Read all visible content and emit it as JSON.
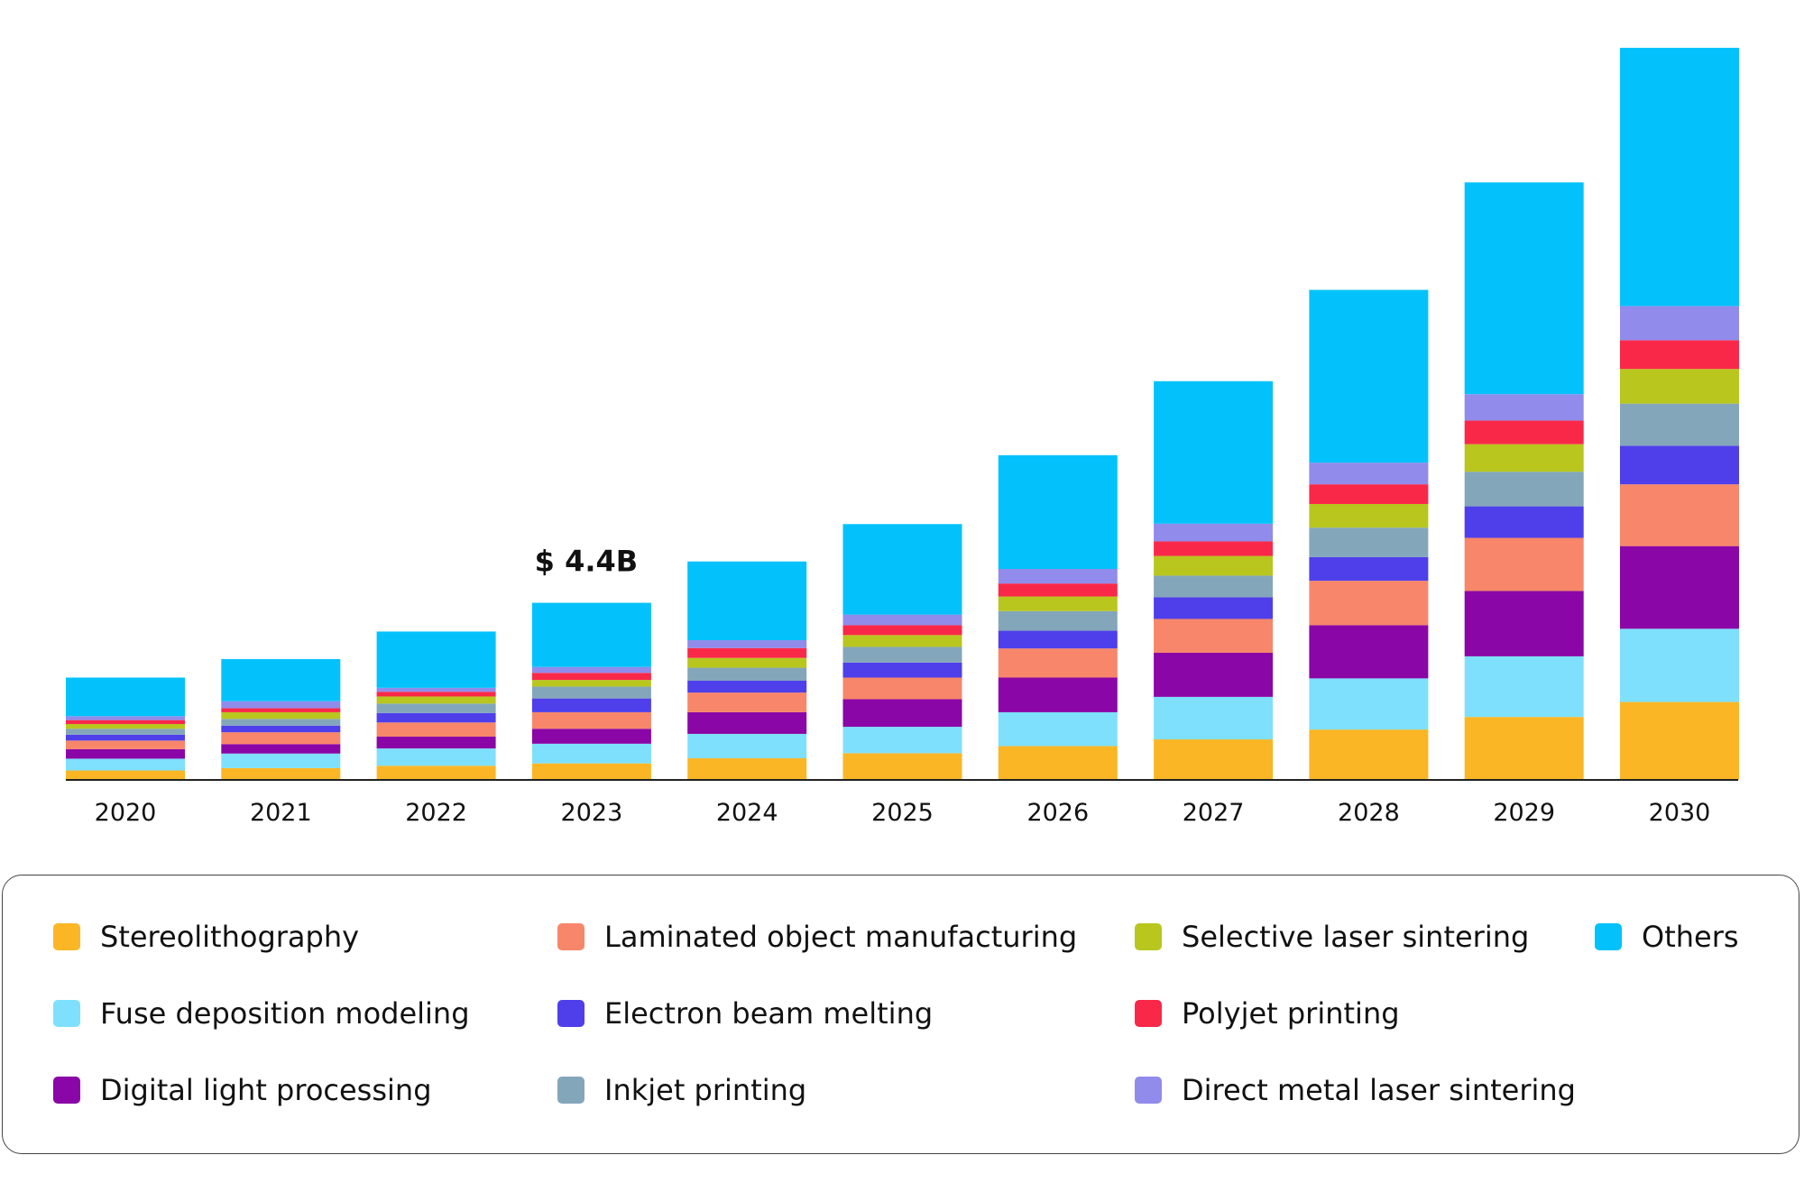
{
  "chart_data": {
    "type": "bar",
    "stacked": true,
    "title": "",
    "xlabel": "",
    "ylabel": "",
    "ylim": [
      0,
      18.6
    ],
    "grid": false,
    "legend_position": "bottom",
    "annotation": {
      "category": "2023",
      "text": "$ 4.4B"
    },
    "categories": [
      "2020",
      "2021",
      "2022",
      "2023",
      "2024",
      "2025",
      "2026",
      "2027",
      "2028",
      "2029",
      "2030"
    ],
    "series": [
      {
        "name": "Stereolithography",
        "color": "#FBB626",
        "values": [
          0.24,
          0.3,
          0.36,
          0.42,
          0.55,
          0.68,
          0.86,
          1.03,
          1.28,
          1.6,
          1.98
        ]
      },
      {
        "name": "Fuse deposition modeling",
        "color": "#7EE0FC",
        "values": [
          0.3,
          0.37,
          0.44,
          0.5,
          0.62,
          0.67,
          0.86,
          1.08,
          1.3,
          1.54,
          1.86
        ]
      },
      {
        "name": "Digital light processing",
        "color": "#8A06A6",
        "values": [
          0.24,
          0.24,
          0.3,
          0.38,
          0.55,
          0.7,
          0.88,
          1.12,
          1.35,
          1.66,
          2.1
        ]
      },
      {
        "name": "Laminated object manufacturing",
        "color": "#F7866A",
        "values": [
          0.22,
          0.3,
          0.36,
          0.42,
          0.5,
          0.55,
          0.74,
          0.86,
          1.13,
          1.35,
          1.57
        ]
      },
      {
        "name": "Electron beam melting",
        "color": "#4E3FEB",
        "values": [
          0.15,
          0.17,
          0.24,
          0.35,
          0.3,
          0.38,
          0.45,
          0.55,
          0.6,
          0.8,
          0.98
        ]
      },
      {
        "name": "Inkjet printing",
        "color": "#84A6BA",
        "values": [
          0.15,
          0.17,
          0.24,
          0.3,
          0.33,
          0.4,
          0.5,
          0.55,
          0.75,
          0.88,
          1.07
        ]
      },
      {
        "name": "Selective laser sintering",
        "color": "#B9C61E",
        "values": [
          0.12,
          0.17,
          0.18,
          0.17,
          0.25,
          0.3,
          0.37,
          0.5,
          0.6,
          0.7,
          0.88
        ]
      },
      {
        "name": "Polyjet printing",
        "color": "#FA2848",
        "values": [
          0.1,
          0.1,
          0.12,
          0.18,
          0.25,
          0.25,
          0.33,
          0.37,
          0.5,
          0.6,
          0.73
        ]
      },
      {
        "name": "Direct metal laser sintering",
        "color": "#918BEB",
        "values": [
          0.1,
          0.18,
          0.1,
          0.15,
          0.2,
          0.27,
          0.37,
          0.45,
          0.55,
          0.67,
          0.87
        ]
      },
      {
        "name": "Others",
        "color": "#03C2FB",
        "values": [
          0.98,
          1.07,
          1.43,
          1.63,
          2.0,
          2.3,
          2.89,
          3.62,
          4.39,
          5.38,
          6.56
        ]
      }
    ]
  },
  "legend": {
    "order": [
      0,
      3,
      6,
      9,
      1,
      4,
      7,
      2,
      5,
      8
    ]
  }
}
